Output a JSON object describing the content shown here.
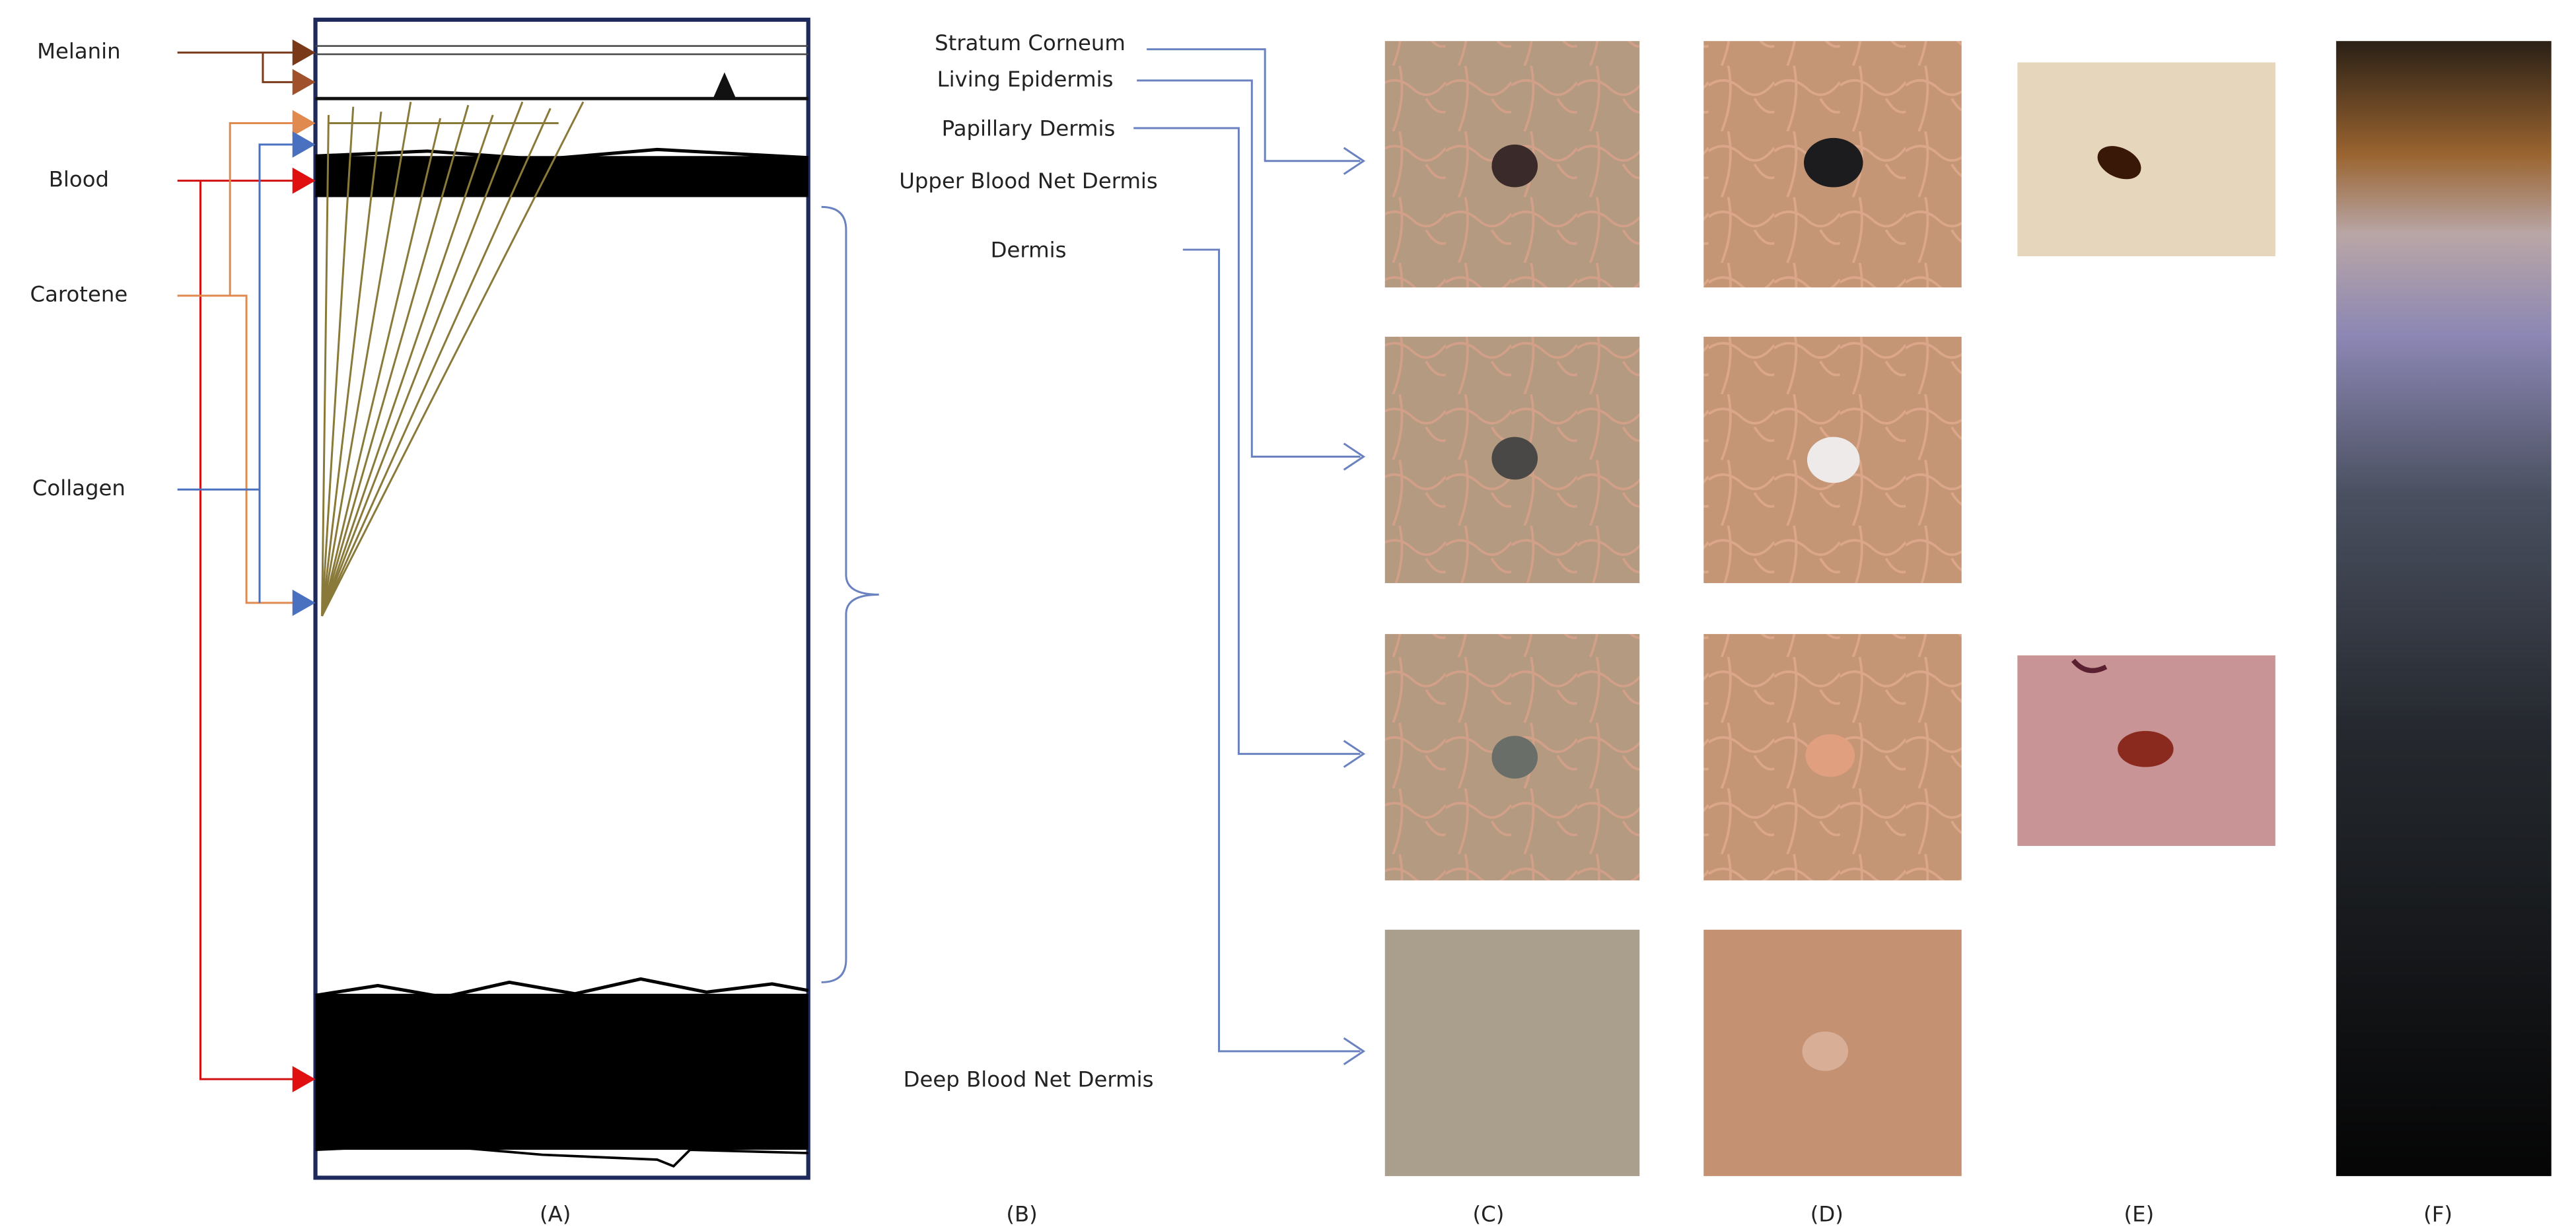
{
  "substances": [
    "Melanin",
    "Blood",
    "Carotene",
    "Collagen"
  ],
  "layers": [
    "Stratum Corneum",
    "Living Epidermis",
    "Papillary Dermis",
    "Upper Blood Net Dermis",
    "Dermis",
    "Deep Blood Net Dermis"
  ],
  "panels": [
    "(A)",
    "(B)",
    "(C)",
    "(D)",
    "(E)",
    "(F)"
  ]
}
